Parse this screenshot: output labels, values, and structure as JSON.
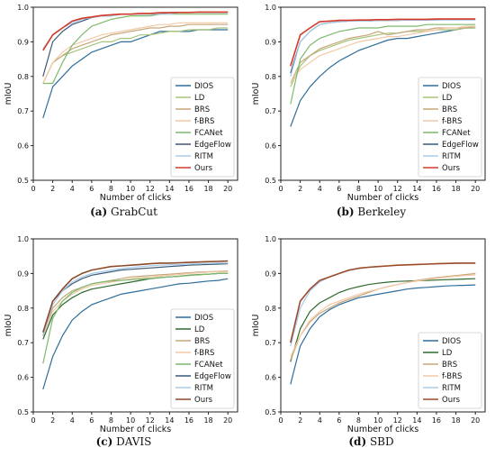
{
  "colors": {
    "DIOS": "#2f6e9a",
    "LD_a": "#a8c47a",
    "LD_c": "#2f6b2f",
    "BRS": "#c7a67a",
    "f-BRS": "#f2c9a6",
    "FCANet": "#7dba6e",
    "EdgeFlow": "#3a5a78",
    "RITM": "#a9cbe8",
    "Ours": "#d43a2a",
    "Ours_c": "#8b4a2a",
    "Ours_d": "#9c4a2a"
  },
  "chart_data": [
    {
      "type": "line",
      "caption_letter": "(a)",
      "caption_text": "GrabCut",
      "xlabel": "Number of clicks",
      "ylabel": "mIoU",
      "xlim": [
        0,
        21
      ],
      "ylim": [
        0.5,
        1.0
      ],
      "xticks": [
        "0",
        "2",
        "4",
        "6",
        "8",
        "10",
        "12",
        "14",
        "16",
        "18",
        "20"
      ],
      "yticks": [
        "0.5",
        "0.6",
        "0.7",
        "0.8",
        "0.9",
        "1.0"
      ],
      "grid": false,
      "legend_position": "bottom-right",
      "x": [
        1,
        2,
        3,
        4,
        5,
        6,
        7,
        8,
        9,
        10,
        11,
        12,
        13,
        14,
        15,
        16,
        17,
        18,
        19,
        20
      ],
      "series": [
        {
          "name": "DIOS",
          "color_key": "DIOS",
          "values": [
            0.68,
            0.77,
            0.8,
            0.83,
            0.85,
            0.87,
            0.88,
            0.89,
            0.9,
            0.9,
            0.91,
            0.92,
            0.93,
            0.93,
            0.93,
            0.93,
            0.935,
            0.935,
            0.935,
            0.935
          ]
        },
        {
          "name": "LD",
          "color_key": "LD_a",
          "values": [
            0.78,
            0.84,
            0.86,
            0.87,
            0.88,
            0.89,
            0.9,
            0.9,
            0.91,
            0.91,
            0.92,
            0.92,
            0.925,
            0.93,
            0.93,
            0.935,
            0.935,
            0.935,
            0.94,
            0.94
          ]
        },
        {
          "name": "BRS",
          "color_key": "BRS",
          "values": [
            0.78,
            0.84,
            0.86,
            0.88,
            0.89,
            0.9,
            0.91,
            0.92,
            0.925,
            0.93,
            0.935,
            0.94,
            0.94,
            0.945,
            0.945,
            0.95,
            0.95,
            0.95,
            0.95,
            0.95
          ]
        },
        {
          "name": "f-BRS",
          "color_key": "f-BRS",
          "values": [
            0.78,
            0.84,
            0.87,
            0.89,
            0.9,
            0.91,
            0.92,
            0.925,
            0.93,
            0.935,
            0.94,
            0.945,
            0.95,
            0.95,
            0.955,
            0.955,
            0.955,
            0.955,
            0.955,
            0.955
          ]
        },
        {
          "name": "FCANet",
          "color_key": "FCANet",
          "values": [
            0.78,
            0.78,
            0.84,
            0.89,
            0.92,
            0.945,
            0.955,
            0.965,
            0.97,
            0.975,
            0.975,
            0.975,
            0.98,
            0.98,
            0.98,
            0.98,
            0.98,
            0.98,
            0.98,
            0.98
          ]
        },
        {
          "name": "EdgeFlow",
          "color_key": "EdgeFlow",
          "values": [
            0.8,
            0.9,
            0.93,
            0.95,
            0.96,
            0.97,
            0.975,
            0.975,
            0.98,
            0.98,
            0.98,
            0.98,
            0.98,
            0.985,
            0.985,
            0.985,
            0.985,
            0.985,
            0.985,
            0.985
          ]
        },
        {
          "name": "RITM",
          "color_key": "RITM",
          "values": [
            0.88,
            0.92,
            0.94,
            0.955,
            0.965,
            0.97,
            0.975,
            0.975,
            0.98,
            0.98,
            0.98,
            0.98,
            0.98,
            0.98,
            0.985,
            0.985,
            0.985,
            0.985,
            0.985,
            0.985
          ]
        },
        {
          "name": "Ours",
          "color_key": "Ours",
          "values": [
            0.875,
            0.92,
            0.94,
            0.96,
            0.968,
            0.972,
            0.976,
            0.978,
            0.98,
            0.98,
            0.982,
            0.982,
            0.984,
            0.984,
            0.985,
            0.985,
            0.986,
            0.986,
            0.986,
            0.986
          ]
        }
      ]
    },
    {
      "type": "line",
      "caption_letter": "(b)",
      "caption_text": "Berkeley",
      "xlabel": "Number of clicks",
      "ylabel": "mIoU",
      "xlim": [
        0,
        21
      ],
      "ylim": [
        0.5,
        1.0
      ],
      "xticks": [
        "0",
        "2",
        "4",
        "6",
        "8",
        "10",
        "12",
        "14",
        "16",
        "18",
        "20"
      ],
      "yticks": [
        "0.5",
        "0.6",
        "0.7",
        "0.8",
        "0.9",
        "1.0"
      ],
      "grid": false,
      "legend_position": "bottom-right",
      "x": [
        1,
        2,
        3,
        4,
        5,
        6,
        7,
        8,
        9,
        10,
        11,
        12,
        13,
        14,
        15,
        16,
        17,
        18,
        19,
        20
      ],
      "series": [
        {
          "name": "DIOS",
          "color_key": "DIOS",
          "values": [
            0.655,
            0.73,
            0.77,
            0.8,
            0.825,
            0.845,
            0.86,
            0.875,
            0.885,
            0.895,
            0.905,
            0.91,
            0.91,
            0.915,
            0.92,
            0.925,
            0.93,
            0.935,
            0.94,
            0.94
          ]
        },
        {
          "name": "LD",
          "color_key": "LD_a",
          "values": [
            0.77,
            0.83,
            0.86,
            0.875,
            0.885,
            0.895,
            0.905,
            0.91,
            0.915,
            0.92,
            0.925,
            0.925,
            0.93,
            0.93,
            0.93,
            0.935,
            0.935,
            0.935,
            0.94,
            0.94
          ]
        },
        {
          "name": "BRS",
          "color_key": "BRS",
          "values": [
            0.78,
            0.84,
            0.86,
            0.88,
            0.89,
            0.9,
            0.91,
            0.915,
            0.92,
            0.93,
            0.92,
            0.925,
            0.93,
            0.935,
            0.935,
            0.94,
            0.94,
            0.94,
            0.94,
            0.945
          ]
        },
        {
          "name": "f-BRS",
          "color_key": "f-BRS",
          "values": [
            0.78,
            0.82,
            0.84,
            0.86,
            0.87,
            0.88,
            0.89,
            0.9,
            0.905,
            0.91,
            0.915,
            0.915,
            0.92,
            0.925,
            0.93,
            0.935,
            0.94,
            0.94,
            0.945,
            0.945
          ]
        },
        {
          "name": "FCANet",
          "color_key": "FCANet",
          "values": [
            0.72,
            0.85,
            0.89,
            0.91,
            0.92,
            0.93,
            0.935,
            0.94,
            0.94,
            0.94,
            0.945,
            0.945,
            0.945,
            0.945,
            0.95,
            0.95,
            0.95,
            0.95,
            0.95,
            0.95
          ]
        },
        {
          "name": "EdgeFlow",
          "color_key": "EdgeFlow",
          "values": [
            0.81,
            0.9,
            0.93,
            0.95,
            0.955,
            0.958,
            0.96,
            0.96,
            0.96,
            0.962,
            0.962,
            0.962,
            0.963,
            0.963,
            0.963,
            0.963,
            0.964,
            0.964,
            0.964,
            0.964
          ]
        },
        {
          "name": "RITM",
          "color_key": "RITM",
          "values": [
            0.8,
            0.9,
            0.93,
            0.95,
            0.955,
            0.958,
            0.96,
            0.96,
            0.96,
            0.962,
            0.962,
            0.962,
            0.963,
            0.963,
            0.963,
            0.963,
            0.963,
            0.963,
            0.963,
            0.963
          ]
        },
        {
          "name": "Ours",
          "color_key": "Ours",
          "values": [
            0.83,
            0.92,
            0.94,
            0.958,
            0.96,
            0.962,
            0.962,
            0.963,
            0.963,
            0.964,
            0.964,
            0.965,
            0.965,
            0.965,
            0.965,
            0.966,
            0.966,
            0.966,
            0.966,
            0.966
          ]
        }
      ]
    },
    {
      "type": "line",
      "caption_letter": "(c)",
      "caption_text": "DAVIS",
      "xlabel": "Number of clicks",
      "ylabel": "mIoU",
      "xlim": [
        0,
        21
      ],
      "ylim": [
        0.5,
        1.0
      ],
      "xticks": [
        "0",
        "2",
        "4",
        "6",
        "8",
        "10",
        "12",
        "14",
        "16",
        "18",
        "20"
      ],
      "yticks": [
        "0.5",
        "0.6",
        "0.7",
        "0.8",
        "0.9",
        "1.0"
      ],
      "grid": false,
      "legend_position": "bottom-right",
      "x": [
        1,
        2,
        3,
        4,
        5,
        6,
        7,
        8,
        9,
        10,
        11,
        12,
        13,
        14,
        15,
        16,
        17,
        18,
        19,
        20
      ],
      "series": [
        {
          "name": "DIOS",
          "color_key": "DIOS",
          "values": [
            0.565,
            0.66,
            0.72,
            0.765,
            0.79,
            0.81,
            0.82,
            0.83,
            0.84,
            0.845,
            0.85,
            0.855,
            0.86,
            0.865,
            0.87,
            0.872,
            0.875,
            0.878,
            0.88,
            0.885
          ]
        },
        {
          "name": "LD",
          "color_key": "LD_c",
          "values": [
            0.71,
            0.78,
            0.81,
            0.83,
            0.845,
            0.855,
            0.86,
            0.865,
            0.87,
            0.875,
            0.88,
            0.885,
            0.888,
            0.89,
            0.892,
            0.895,
            0.897,
            0.898,
            0.9,
            0.9
          ]
        },
        {
          "name": "BRS",
          "color_key": "BRS",
          "values": [
            0.72,
            0.8,
            0.83,
            0.85,
            0.86,
            0.87,
            0.875,
            0.88,
            0.885,
            0.89,
            0.892,
            0.894,
            0.896,
            0.898,
            0.9,
            0.902,
            0.904,
            0.905,
            0.906,
            0.907
          ]
        },
        {
          "name": "f-BRS",
          "color_key": "f-BRS",
          "values": [
            0.72,
            0.79,
            0.82,
            0.84,
            0.855,
            0.865,
            0.87,
            0.875,
            0.88,
            0.885,
            0.888,
            0.89,
            0.892,
            0.895,
            0.897,
            0.9,
            0.902,
            0.904,
            0.905,
            0.905
          ]
        },
        {
          "name": "FCANet",
          "color_key": "FCANet",
          "values": [
            0.64,
            0.77,
            0.82,
            0.845,
            0.86,
            0.87,
            0.875,
            0.878,
            0.88,
            0.882,
            0.884,
            0.886,
            0.888,
            0.89,
            0.892,
            0.894,
            0.896,
            0.898,
            0.9,
            0.9
          ]
        },
        {
          "name": "EdgeFlow",
          "color_key": "EdgeFlow",
          "values": [
            0.72,
            0.82,
            0.85,
            0.87,
            0.885,
            0.895,
            0.9,
            0.905,
            0.91,
            0.912,
            0.914,
            0.916,
            0.918,
            0.92,
            0.922,
            0.924,
            0.925,
            0.926,
            0.927,
            0.928
          ]
        },
        {
          "name": "RITM",
          "color_key": "RITM",
          "values": [
            0.72,
            0.81,
            0.85,
            0.875,
            0.89,
            0.9,
            0.905,
            0.91,
            0.914,
            0.917,
            0.92,
            0.922,
            0.924,
            0.925,
            0.926,
            0.927,
            0.928,
            0.929,
            0.93,
            0.93
          ]
        },
        {
          "name": "Ours",
          "color_key": "Ours_c",
          "values": [
            0.73,
            0.82,
            0.855,
            0.885,
            0.9,
            0.91,
            0.915,
            0.92,
            0.922,
            0.924,
            0.926,
            0.928,
            0.93,
            0.93,
            0.931,
            0.932,
            0.933,
            0.934,
            0.935,
            0.936
          ]
        }
      ]
    },
    {
      "type": "line",
      "caption_letter": "(d)",
      "caption_text": "SBD",
      "xlabel": "Number of clicks",
      "ylabel": "mIoU",
      "xlim": [
        0,
        21
      ],
      "ylim": [
        0.5,
        1.0
      ],
      "xticks": [
        "0",
        "2",
        "4",
        "6",
        "8",
        "10",
        "12",
        "14",
        "16",
        "18",
        "20"
      ],
      "yticks": [
        "0.5",
        "0.6",
        "0.7",
        "0.8",
        "0.9",
        "1.0"
      ],
      "grid": false,
      "legend_position": "bottom-right",
      "x": [
        1,
        2,
        3,
        4,
        5,
        6,
        7,
        8,
        9,
        10,
        11,
        12,
        13,
        14,
        15,
        16,
        17,
        18,
        19,
        20
      ],
      "series": [
        {
          "name": "DIOS",
          "color_key": "DIOS",
          "values": [
            0.58,
            0.69,
            0.74,
            0.775,
            0.795,
            0.81,
            0.82,
            0.83,
            0.835,
            0.84,
            0.845,
            0.85,
            0.855,
            0.858,
            0.86,
            0.862,
            0.864,
            0.865,
            0.866,
            0.867
          ]
        },
        {
          "name": "LD",
          "color_key": "LD_c",
          "values": [
            0.645,
            0.74,
            0.79,
            0.815,
            0.83,
            0.845,
            0.855,
            0.862,
            0.868,
            0.872,
            0.875,
            0.877,
            0.878,
            0.879,
            0.88,
            0.881,
            0.882,
            0.883,
            0.884,
            0.885
          ]
        },
        {
          "name": "BRS",
          "color_key": "BRS",
          "values": [
            0.65,
            0.72,
            0.76,
            0.785,
            0.8,
            0.815,
            0.825,
            0.835,
            0.845,
            0.855,
            0.862,
            0.868,
            0.874,
            0.88,
            0.884,
            0.888,
            0.891,
            0.894,
            0.897,
            0.9
          ]
        },
        {
          "name": "f-BRS",
          "color_key": "f-BRS",
          "values": [
            0.66,
            0.72,
            0.765,
            0.79,
            0.81,
            0.82,
            0.83,
            0.84,
            0.848,
            0.855,
            0.862,
            0.868,
            0.874,
            0.878,
            0.882,
            0.886,
            0.889,
            0.892,
            0.894,
            0.896
          ]
        },
        {
          "name": "RITM",
          "color_key": "RITM",
          "values": [
            0.69,
            0.8,
            0.85,
            0.875,
            0.89,
            0.9,
            0.908,
            0.914,
            0.918,
            0.92,
            0.922,
            0.924,
            0.925,
            0.926,
            0.927,
            0.928,
            0.929,
            0.929,
            0.93,
            0.93
          ]
        },
        {
          "name": "Ours",
          "color_key": "Ours_d",
          "values": [
            0.7,
            0.82,
            0.855,
            0.88,
            0.89,
            0.9,
            0.91,
            0.915,
            0.918,
            0.92,
            0.922,
            0.924,
            0.925,
            0.926,
            0.927,
            0.928,
            0.929,
            0.93,
            0.93,
            0.93
          ]
        }
      ]
    }
  ]
}
